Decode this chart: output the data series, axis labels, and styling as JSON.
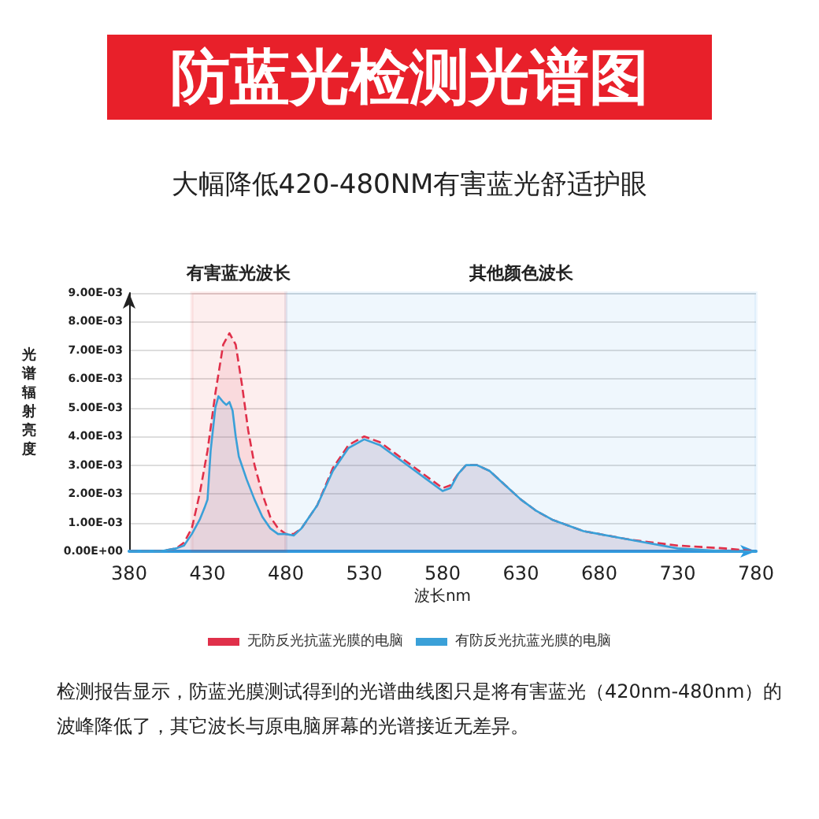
{
  "chart_data": {
    "type": "area",
    "title": "防蓝光检测光谱图",
    "subtitle": "大幅降低420-480NM有害蓝光舒适护眼",
    "xlabel": "波长nm",
    "ylabel": "光谱辐射亮度",
    "xlim": [
      380,
      780
    ],
    "xticks": [
      380,
      430,
      480,
      530,
      580,
      630,
      680,
      730,
      780
    ],
    "ylim": [
      0,
      0.009
    ],
    "yticks": [
      {
        "value": 0,
        "label": "0.00E+00"
      },
      {
        "value": 0.001,
        "label": "1.00E-03"
      },
      {
        "value": 0.002,
        "label": "2.00E-03"
      },
      {
        "value": 0.003,
        "label": "3.00E-03"
      },
      {
        "value": 0.004,
        "label": "4.00E-03"
      },
      {
        "value": 0.005,
        "label": "5.00E-03"
      },
      {
        "value": 0.006,
        "label": "6.00E-03"
      },
      {
        "value": 0.007,
        "label": "7.00E-03"
      },
      {
        "value": 0.008,
        "label": "8.00E-03"
      },
      {
        "value": 0.009,
        "label": "9.00E-03"
      }
    ],
    "grid": "y",
    "legend": "bottom",
    "bands": [
      {
        "axis": "x",
        "from": 420,
        "to": 480,
        "label": "有害蓝光波长",
        "color": "#e8202a"
      },
      {
        "axis": "x",
        "from": 480,
        "to": 780,
        "label": "其他颜色波长",
        "color": "#2d9be0"
      }
    ],
    "series": [
      {
        "name": "无防反光抗蓝光膜的电脑",
        "color": "#e0304a",
        "line_style": "dashed",
        "x": [
          380,
          400,
          410,
          415,
          420,
          425,
          430,
          435,
          440,
          444,
          448,
          452,
          456,
          460,
          465,
          470,
          475,
          480,
          485,
          490,
          500,
          510,
          520,
          530,
          540,
          550,
          560,
          570,
          580,
          585,
          590,
          595,
          602,
          610,
          620,
          630,
          640,
          650,
          660,
          670,
          680,
          700,
          730,
          760,
          780
        ],
        "values": [
          0,
          0,
          0.0001,
          0.0003,
          0.0008,
          0.002,
          0.0035,
          0.0055,
          0.0072,
          0.0076,
          0.0072,
          0.0058,
          0.0042,
          0.003,
          0.002,
          0.0012,
          0.0008,
          0.0006,
          0.0006,
          0.0008,
          0.0016,
          0.0029,
          0.0037,
          0.004,
          0.0038,
          0.0034,
          0.003,
          0.0026,
          0.0022,
          0.0023,
          0.0027,
          0.003,
          0.003,
          0.0028,
          0.0023,
          0.0018,
          0.0014,
          0.0011,
          0.0009,
          0.0007,
          0.0006,
          0.0004,
          0.0002,
          0.0001,
          0
        ]
      },
      {
        "name": "有防反光抗蓝光膜的电脑",
        "color": "#3aa0d8",
        "line_style": "solid",
        "x": [
          380,
          400,
          410,
          415,
          420,
          425,
          428,
          430,
          432,
          435,
          437,
          440,
          442,
          444,
          446,
          448,
          450,
          455,
          460,
          465,
          470,
          475,
          480,
          485,
          490,
          500,
          510,
          520,
          530,
          540,
          550,
          560,
          570,
          580,
          585,
          590,
          595,
          602,
          610,
          620,
          630,
          640,
          650,
          660,
          670,
          680,
          700,
          730,
          760,
          780
        ],
        "values": [
          0,
          0,
          0.0001,
          0.0002,
          0.0006,
          0.0011,
          0.0015,
          0.0018,
          0.0035,
          0.005,
          0.0054,
          0.0052,
          0.0051,
          0.0052,
          0.0049,
          0.004,
          0.0033,
          0.0025,
          0.0018,
          0.0012,
          0.0008,
          0.0006,
          0.0006,
          0.00055,
          0.0008,
          0.0016,
          0.0028,
          0.0036,
          0.0039,
          0.0037,
          0.0033,
          0.0029,
          0.0025,
          0.0021,
          0.0022,
          0.0027,
          0.003,
          0.003,
          0.0028,
          0.0023,
          0.0018,
          0.0014,
          0.0011,
          0.0009,
          0.0007,
          0.0006,
          0.0004,
          0.0001,
          0,
          0
        ]
      }
    ],
    "annotations": [
      "检测报告显示，防蓝光膜测试得到的光谱曲线图只是将有害蓝光（420nm-480nm）的波峰降低了，其它波长与原电脑屏幕的光谱接近无差异。"
    ]
  }
}
